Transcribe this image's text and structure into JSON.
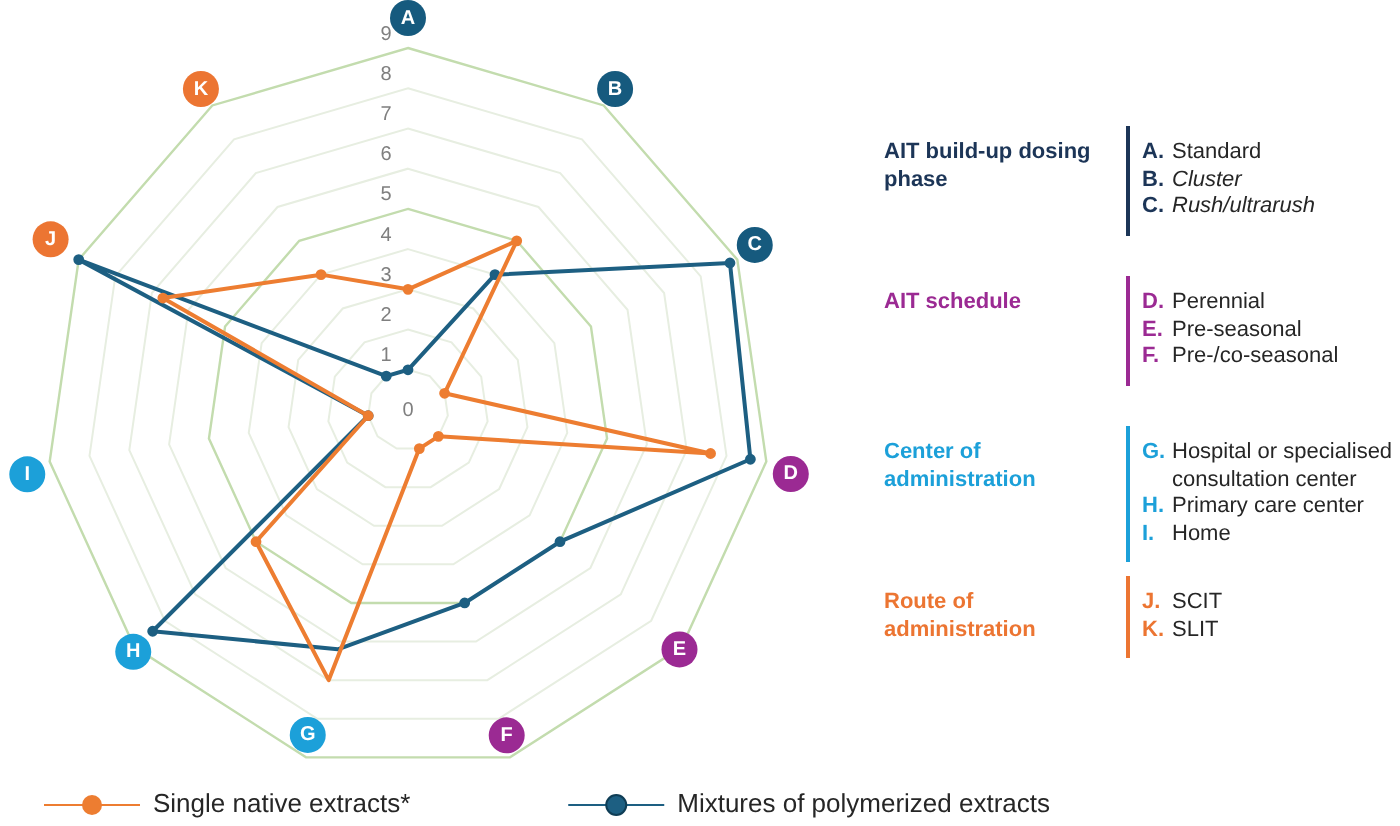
{
  "chart_data": {
    "type": "radar",
    "categories": [
      "A",
      "B",
      "C",
      "D",
      "E",
      "F",
      "G",
      "H",
      "I",
      "J",
      "K"
    ],
    "series": [
      {
        "name": "Single native extracts*",
        "color": "#ed7d31",
        "values": [
          3,
          5,
          1,
          7.6,
          1,
          1,
          7,
          5,
          1,
          6.7,
          4
        ]
      },
      {
        "name": "Mixtures of polymerized extracts",
        "color": "#1d5f82",
        "values": [
          1,
          4,
          8.8,
          8.6,
          5,
          5,
          6.2,
          8.4,
          1,
          9,
          1
        ]
      }
    ],
    "ylim": [
      0,
      9
    ],
    "yticks": [
      0,
      1,
      2,
      3,
      4,
      5,
      6,
      7,
      8,
      9
    ],
    "grid": true,
    "legend": "bottom",
    "marker": "circle",
    "annotations": [
      "AIT build-up dosing phase",
      "A. Standard",
      "B. Cluster",
      "C. Rush/ultrarush",
      "AIT schedule",
      "D. Perennial",
      "E. Pre-seasonal",
      "F. Pre-/co-seasonal",
      "Center of administration",
      "G. Hospital or specialised consultation center",
      "H. Primary care center",
      "I. Home",
      "Route of administration",
      "J. SCIT",
      "K. SLIT"
    ]
  }
}
